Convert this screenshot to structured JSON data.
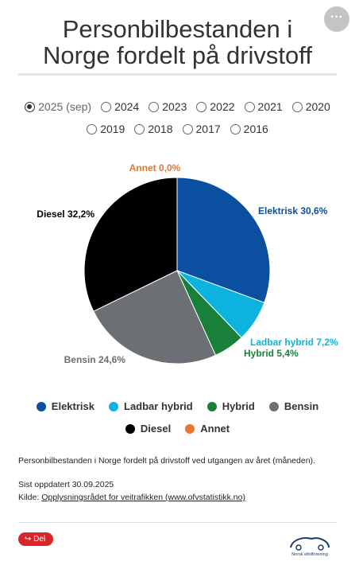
{
  "title": [
    "Personbilbestanden i",
    "Norge fordelt på drivstoff"
  ],
  "controls": {
    "years": [
      "2025 (sep)",
      "2024",
      "2023",
      "2022",
      "2021",
      "2020",
      "2019",
      "2018",
      "2017",
      "2016"
    ],
    "selected": 0
  },
  "chart_data": {
    "type": "pie",
    "categories": [
      "Elektrisk",
      "Ladbar hybrid",
      "Hybrid",
      "Bensin",
      "Diesel",
      "Annet"
    ],
    "values": [
      30.6,
      7.2,
      5.4,
      24.6,
      32.2,
      0.0
    ],
    "value_labels": [
      "Elektrisk 30,6%",
      "Ladbar hybrid 7,2%",
      "Hybrid 5,4%",
      "Bensin 24,6%",
      "Diesel 32,2%",
      "Annet 0,0%"
    ],
    "colors": [
      "#0a4fa0",
      "#0db3df",
      "#19803a",
      "#6c6f73",
      "#000000",
      "#e8742f"
    ]
  },
  "footer": {
    "description": "Personbilbestanden i Norge fordelt på drivstoff ved utgangen av året (måneden).",
    "updated": "Sist oppdatert 30.09.2025",
    "source_label": "Kilde:",
    "source_link": "Opplysningsrådet for veitrafikken (www.ofvstatistikk.no)",
    "share": "Del",
    "logo": "Norsk elbilforening"
  }
}
